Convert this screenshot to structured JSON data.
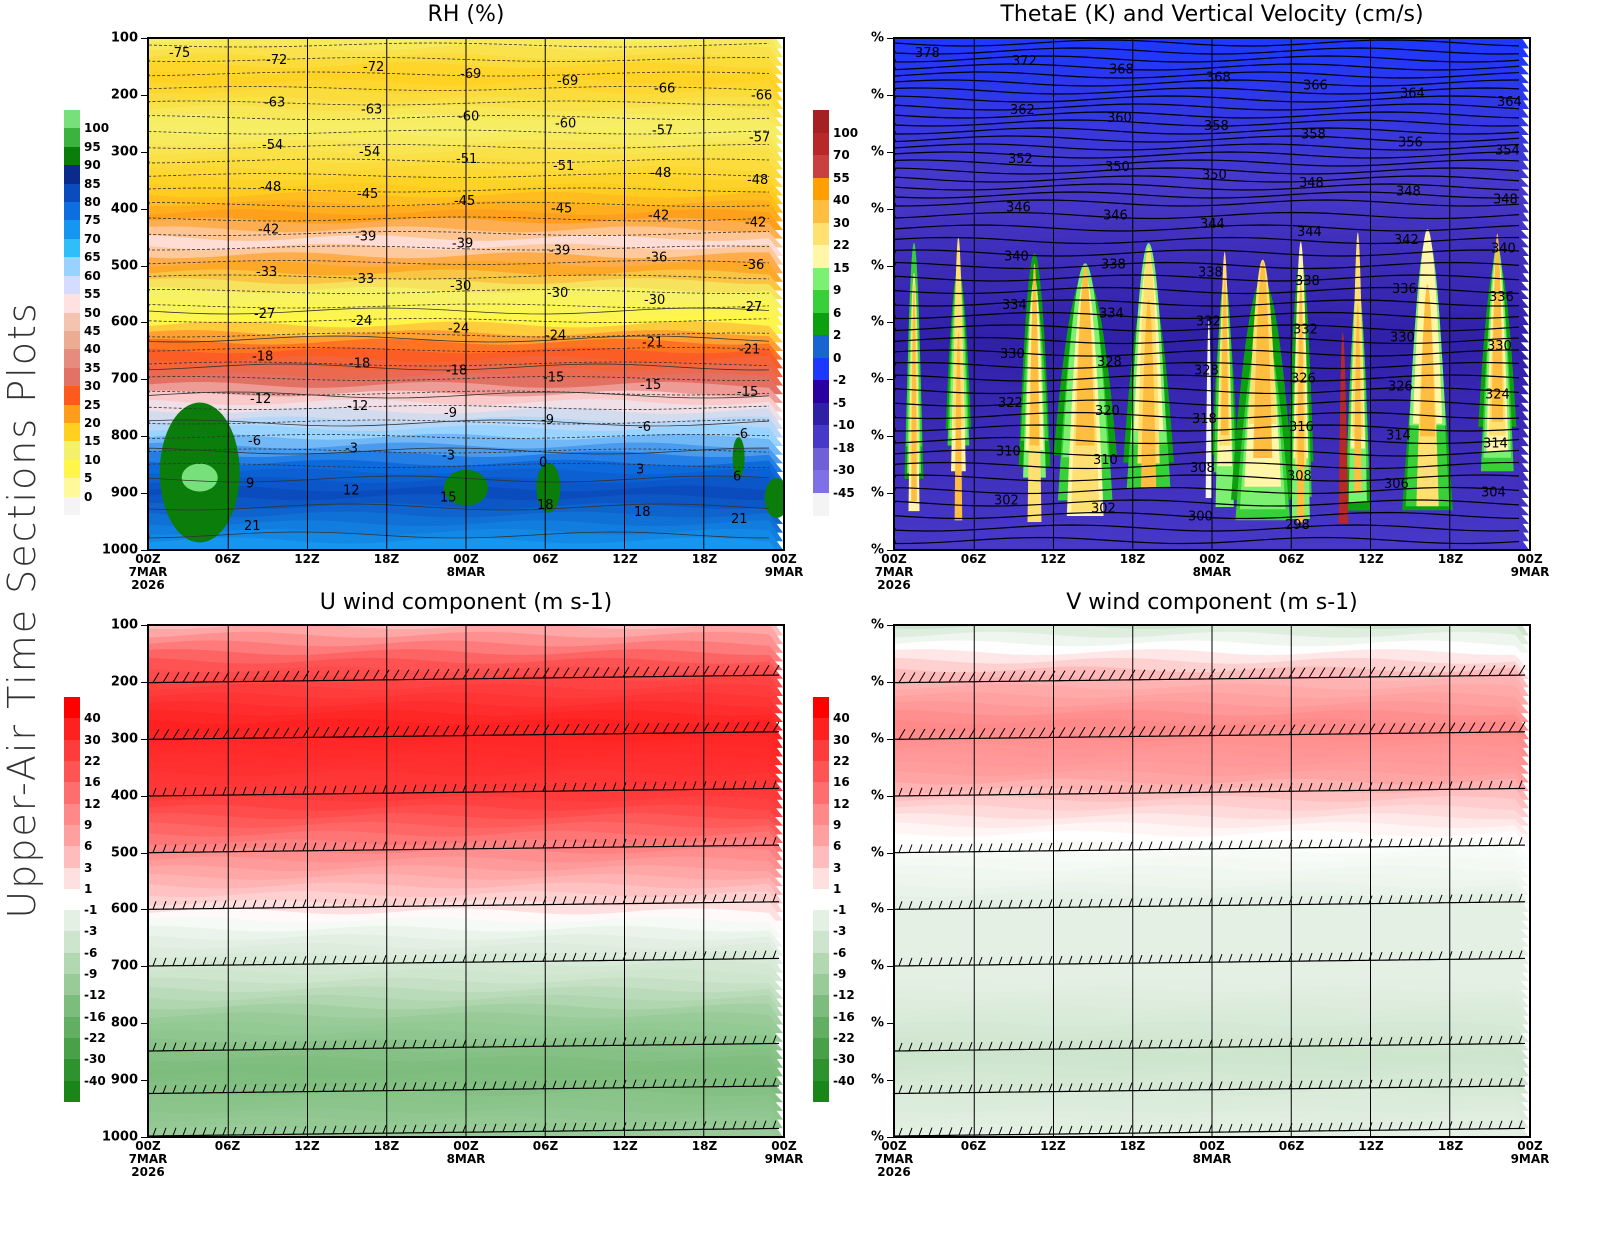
{
  "side_title": "Upper-Air Time Sections Plots",
  "chart_data": [
    {
      "id": "rh",
      "type": "heatmap",
      "title": "RH (%)",
      "xlabel": "",
      "ylabel": "",
      "y_ticks": [
        "100",
        "200",
        "300",
        "400",
        "500",
        "600",
        "700",
        "800",
        "900",
        "1000"
      ],
      "y_range": [
        100,
        1000
      ],
      "x_ticks": [
        {
          "time": "00Z",
          "date": "7MAR",
          "year": "2026"
        },
        {
          "time": "06Z",
          "date": "",
          "year": ""
        },
        {
          "time": "12Z",
          "date": "",
          "year": ""
        },
        {
          "time": "18Z",
          "date": "",
          "year": ""
        },
        {
          "time": "00Z",
          "date": "8MAR",
          "year": ""
        },
        {
          "time": "06Z",
          "date": "",
          "year": ""
        },
        {
          "time": "12Z",
          "date": "",
          "year": ""
        },
        {
          "time": "18Z",
          "date": "",
          "year": ""
        },
        {
          "time": "00Z",
          "date": "9MAR",
          "year": ""
        }
      ],
      "colorbar": {
        "labels": [
          "100",
          "95",
          "90",
          "85",
          "80",
          "75",
          "70",
          "65",
          "60",
          "55",
          "50",
          "45",
          "40",
          "35",
          "30",
          "25",
          "20",
          "15",
          "10",
          "5",
          "0"
        ],
        "colors": [
          "#78e07a",
          "#3cb33e",
          "#0b7d0b",
          "#0b2b8c",
          "#0a4bbd",
          "#0d6ee0",
          "#1596f0",
          "#30bef8",
          "#98d3ff",
          "#d5dcff",
          "#ffe1e2",
          "#f4c4b0",
          "#ecac94",
          "#e68c7e",
          "#e27266",
          "#ff5a1c",
          "#ff9c1c",
          "#ffd020",
          "#f5f06a",
          "#fff648",
          "#fff99a",
          "#f4f4f4"
        ]
      },
      "contour_labels": [
        "-75",
        "-72",
        "-72",
        "-69",
        "-69",
        "-66",
        "-66",
        "-63",
        "-63",
        "-60",
        "-60",
        "-57",
        "-57",
        "-54",
        "-54",
        "-51",
        "-51",
        "-48",
        "-48",
        "-48",
        "-45",
        "-45",
        "-45",
        "-42",
        "-42",
        "-42",
        "-39",
        "-39",
        "-39",
        "-36",
        "-36",
        "-33",
        "-33",
        "-30",
        "-30",
        "-30",
        "-27",
        "-27",
        "-24",
        "-24",
        "-24",
        "-21",
        "-21",
        "-18",
        "-18",
        "-18",
        "-15",
        "-15",
        "-15",
        "-12",
        "-12",
        "-9",
        "-9",
        "-6",
        "-6",
        "-6",
        "-3",
        "-3",
        "0",
        "3",
        "6",
        "9",
        "12",
        "15",
        "18",
        "18",
        "21",
        "21"
      ]
    },
    {
      "id": "thetae",
      "type": "heatmap",
      "title": "ThetaE (K) and Vertical Velocity (cm/s)",
      "y_ticks": [
        "%",
        "%",
        "%",
        "%",
        "%",
        "%",
        "%",
        "%",
        "%",
        "%"
      ],
      "x_ticks": [
        {
          "time": "00Z",
          "date": "7MAR",
          "year": "2026"
        },
        {
          "time": "06Z",
          "date": "",
          "year": ""
        },
        {
          "time": "12Z",
          "date": "",
          "year": ""
        },
        {
          "time": "18Z",
          "date": "",
          "year": ""
        },
        {
          "time": "00Z",
          "date": "8MAR",
          "year": ""
        },
        {
          "time": "06Z",
          "date": "",
          "year": ""
        },
        {
          "time": "12Z",
          "date": "",
          "year": ""
        },
        {
          "time": "18Z",
          "date": "",
          "year": ""
        },
        {
          "time": "00Z",
          "date": "9MAR",
          "year": ""
        }
      ],
      "colorbar": {
        "labels": [
          "100",
          "70",
          "55",
          "40",
          "30",
          "22",
          "15",
          "9",
          "6",
          "2",
          "0",
          "-2",
          "-5",
          "-10",
          "-18",
          "-30",
          "-45"
        ],
        "colors": [
          "#a52020",
          "#b82828",
          "#c84040",
          "#ffa000",
          "#ffbe40",
          "#ffe070",
          "#fff6a8",
          "#7cf070",
          "#38d038",
          "#0ca010",
          "#1864d0",
          "#1c38ff",
          "#2a00a0",
          "#3020a8",
          "#4838c8",
          "#7060d8",
          "#8070e8",
          "#f4f4f4"
        ]
      },
      "contour_labels": [
        "378",
        "372",
        "368",
        "368",
        "366",
        "364",
        "364",
        "362",
        "360",
        "358",
        "358",
        "356",
        "354",
        "352",
        "350",
        "350",
        "348",
        "348",
        "348",
        "346",
        "346",
        "344",
        "344",
        "342",
        "340",
        "340",
        "338",
        "338",
        "338",
        "336",
        "336",
        "334",
        "334",
        "332",
        "332",
        "330",
        "330",
        "330",
        "328",
        "328",
        "326",
        "326",
        "324",
        "322",
        "320",
        "318",
        "316",
        "314",
        "314",
        "310",
        "310",
        "308",
        "308",
        "306",
        "304",
        "302",
        "302",
        "300",
        "298"
      ]
    },
    {
      "id": "uwind",
      "type": "heatmap",
      "title": "U wind component (m s-1)",
      "y_ticks": [
        "100",
        "200",
        "300",
        "400",
        "500",
        "600",
        "700",
        "800",
        "900",
        "1000"
      ],
      "x_ticks": [
        {
          "time": "00Z",
          "date": "7MAR",
          "year": "2026"
        },
        {
          "time": "06Z",
          "date": "",
          "year": ""
        },
        {
          "time": "12Z",
          "date": "",
          "year": ""
        },
        {
          "time": "18Z",
          "date": "",
          "year": ""
        },
        {
          "time": "00Z",
          "date": "8MAR",
          "year": ""
        },
        {
          "time": "06Z",
          "date": "",
          "year": ""
        },
        {
          "time": "12Z",
          "date": "",
          "year": ""
        },
        {
          "time": "18Z",
          "date": "",
          "year": ""
        },
        {
          "time": "00Z",
          "date": "9MAR",
          "year": ""
        }
      ],
      "colorbar": {
        "labels": [
          "40",
          "30",
          "22",
          "16",
          "12",
          "9",
          "6",
          "3",
          "1",
          "-1",
          "-3",
          "-6",
          "-9",
          "-12",
          "-16",
          "-22",
          "-30",
          "-40"
        ],
        "colors": [
          "#ff0000",
          "#ff2020",
          "#ff3c3c",
          "#ff5454",
          "#ff6e6e",
          "#ff8888",
          "#ffa0a0",
          "#ffbcbc",
          "#ffe0e0",
          "#ffffff",
          "#e4f0e4",
          "#cde4cd",
          "#b2d8b2",
          "#98cb98",
          "#7cbc7c",
          "#62ae62",
          "#48a048",
          "#2e922e",
          "#1a861a"
        ]
      },
      "barb_levels": [
        200,
        300,
        400,
        500,
        600,
        700,
        850,
        925,
        1000
      ]
    },
    {
      "id": "vwind",
      "type": "heatmap",
      "title": "V wind component (m s-1)",
      "y_ticks": [
        "%",
        "%",
        "%",
        "%",
        "%",
        "%",
        "%",
        "%",
        "%",
        "%"
      ],
      "x_ticks": [
        {
          "time": "00Z",
          "date": "7MAR",
          "year": "2026"
        },
        {
          "time": "06Z",
          "date": "",
          "year": ""
        },
        {
          "time": "12Z",
          "date": "",
          "year": ""
        },
        {
          "time": "18Z",
          "date": "",
          "year": ""
        },
        {
          "time": "00Z",
          "date": "8MAR",
          "year": ""
        },
        {
          "time": "06Z",
          "date": "",
          "year": ""
        },
        {
          "time": "12Z",
          "date": "",
          "year": ""
        },
        {
          "time": "18Z",
          "date": "",
          "year": ""
        },
        {
          "time": "00Z",
          "date": "9MAR",
          "year": ""
        }
      ],
      "colorbar": {
        "labels": [
          "40",
          "30",
          "22",
          "16",
          "12",
          "9",
          "6",
          "3",
          "1",
          "-1",
          "-3",
          "-6",
          "-9",
          "-12",
          "-16",
          "-22",
          "-30",
          "-40"
        ],
        "colors": [
          "#ff0000",
          "#ff2020",
          "#ff3c3c",
          "#ff5454",
          "#ff6e6e",
          "#ff8888",
          "#ffa0a0",
          "#ffbcbc",
          "#ffe0e0",
          "#ffffff",
          "#e4f0e4",
          "#cde4cd",
          "#b2d8b2",
          "#98cb98",
          "#7cbc7c",
          "#62ae62",
          "#48a048",
          "#2e922e",
          "#1a861a"
        ]
      },
      "barb_levels": [
        200,
        300,
        400,
        500,
        600,
        700,
        850,
        925,
        1000
      ]
    }
  ]
}
